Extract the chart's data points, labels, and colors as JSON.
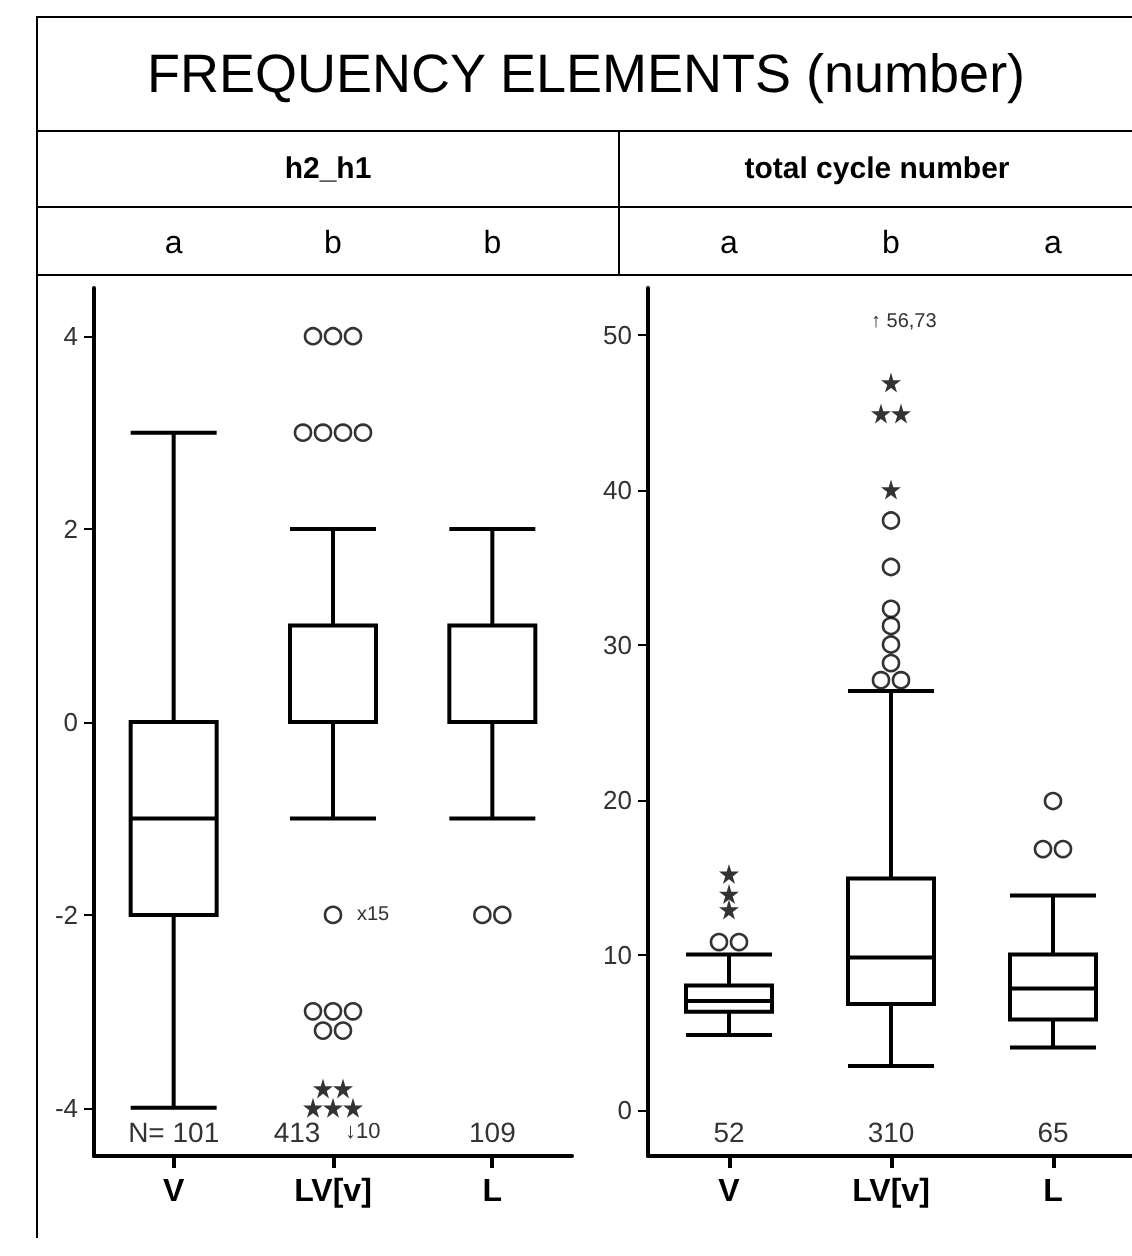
{
  "chart_data": [
    {
      "type": "box",
      "title": "FREQUENCY ELEMENTS (number)",
      "subtitle": "h2_h1",
      "categories": [
        "V",
        "LV[v]",
        "L"
      ],
      "color": "#000000",
      "marker": "circle",
      "ylim": [
        -4.5,
        4.5
      ],
      "yticks": [
        -4,
        -2,
        0,
        2,
        4
      ],
      "boxes": [
        {
          "low": -4,
          "q1": -2,
          "median": -1,
          "q3": 0,
          "high": 3
        },
        {
          "low": -1,
          "q1": 0,
          "median": 0,
          "q3": 1,
          "high": 2,
          "outliers": [
            4,
            4,
            4,
            3,
            3,
            3,
            3,
            -2,
            -3,
            -3,
            -3,
            -3.2,
            -3.2
          ]
        },
        {
          "low": -1,
          "q1": 0,
          "median": 0,
          "q3": 1,
          "high": 2,
          "outliers": [
            -2,
            -2
          ]
        }
      ],
      "series": [
        {
          "type": "scatter",
          "marker": "star",
          "color": "#000000",
          "x": [
            "LV[v]",
            "LV[v]",
            "LV[v]",
            "LV[v]",
            "LV[v]"
          ],
          "values": [
            -3.8,
            -3.8,
            -4,
            -4,
            -4
          ]
        }
      ],
      "annotations": [
        "a",
        "b",
        "b",
        "N= 101",
        "413",
        "109",
        "x15",
        "↓10"
      ]
    },
    {
      "type": "box",
      "subtitle": "total cycle number",
      "categories": [
        "V",
        "LV[v]",
        "L"
      ],
      "color": "#000000",
      "marker": "circle",
      "ylim": [
        -3,
        53
      ],
      "yticks": [
        0,
        10,
        20,
        30,
        40,
        50
      ],
      "boxes": [
        {
          "low": 4.8,
          "q1": 6.3,
          "median": 7,
          "q3": 8,
          "high": 10,
          "outliers": [
            10.8,
            10.8
          ]
        },
        {
          "low": 2.8,
          "q1": 6.8,
          "median": 9.8,
          "q3": 14.9,
          "high": 27,
          "outliers": [
            38,
            35,
            32.3,
            31.2,
            30,
            28.8,
            27.7,
            27.7
          ]
        },
        {
          "low": 4,
          "q1": 5.8,
          "median": 7.8,
          "q3": 10,
          "high": 13.8,
          "outliers": [
            19.9,
            16.8,
            16.8
          ]
        }
      ],
      "series": [
        {
          "type": "scatter",
          "marker": "star",
          "color": "#000000",
          "x": [
            "V",
            "V",
            "V",
            "LV[v]",
            "LV[v]",
            "LV[v]",
            "LV[v]"
          ],
          "values": [
            12.9,
            13.9,
            15.2,
            40,
            44.9,
            44.9,
            46.9
          ]
        }
      ],
      "annotations": [
        "a",
        "b",
        "a",
        "52",
        "310",
        "65",
        "↑ 56,73"
      ]
    }
  ]
}
